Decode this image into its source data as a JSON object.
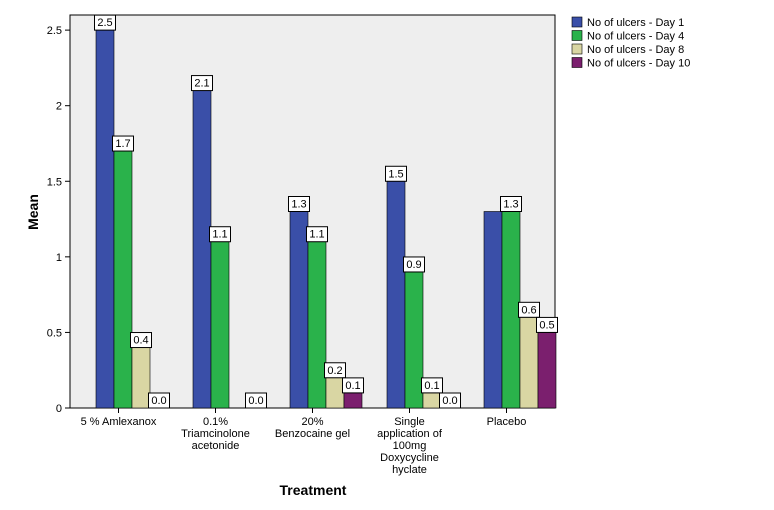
{
  "chart_data": {
    "type": "bar",
    "title": "",
    "xlabel": "Treatment",
    "ylabel": "Mean",
    "ylim": [
      0,
      2.6
    ],
    "yticks": [
      0,
      0.5,
      1,
      1.5,
      2,
      2.5
    ],
    "ytick_labels": [
      "0",
      "0.5",
      "1",
      "1.5",
      "2",
      "2.5"
    ],
    "grid": false,
    "legend_position": "right",
    "categories": [
      [
        "5 % Amlexanox"
      ],
      [
        "0.1%",
        "Triamcinolone",
        "acetonide"
      ],
      [
        "20%",
        "Benzocaine gel"
      ],
      [
        "Single",
        "application of",
        "100mg",
        "Doxycycline",
        "hyclate"
      ],
      [
        "Placebo"
      ]
    ],
    "series": [
      {
        "name": "No of ulcers - Day 1",
        "color": "#3a4fa8",
        "values": [
          2.5,
          2.1,
          1.3,
          1.5,
          1.3
        ],
        "labels": [
          "2.5",
          "2.1",
          "1.3",
          "1.5",
          null
        ]
      },
      {
        "name": "No of ulcers - Day 4",
        "color": "#2ab24b",
        "values": [
          1.7,
          1.1,
          1.1,
          0.9,
          1.3
        ],
        "labels": [
          "1.7",
          "1.1",
          "1.1",
          "0.9",
          "1.3"
        ]
      },
      {
        "name": "No of ulcers - Day 8",
        "color": "#d9d6a3",
        "values": [
          0.4,
          null,
          0.2,
          0.1,
          0.6
        ],
        "labels": [
          "0.4",
          null,
          "0.2",
          "0.1",
          "0.6"
        ]
      },
      {
        "name": "No of ulcers - Day 10",
        "color": "#7b1f6e",
        "values": [
          0.0,
          0.0,
          0.1,
          0.0,
          0.5
        ],
        "labels": [
          "0.0",
          "0.0",
          "0.1",
          "0.0",
          "0.5"
        ]
      }
    ],
    "plot_background": "#eeeeee"
  }
}
